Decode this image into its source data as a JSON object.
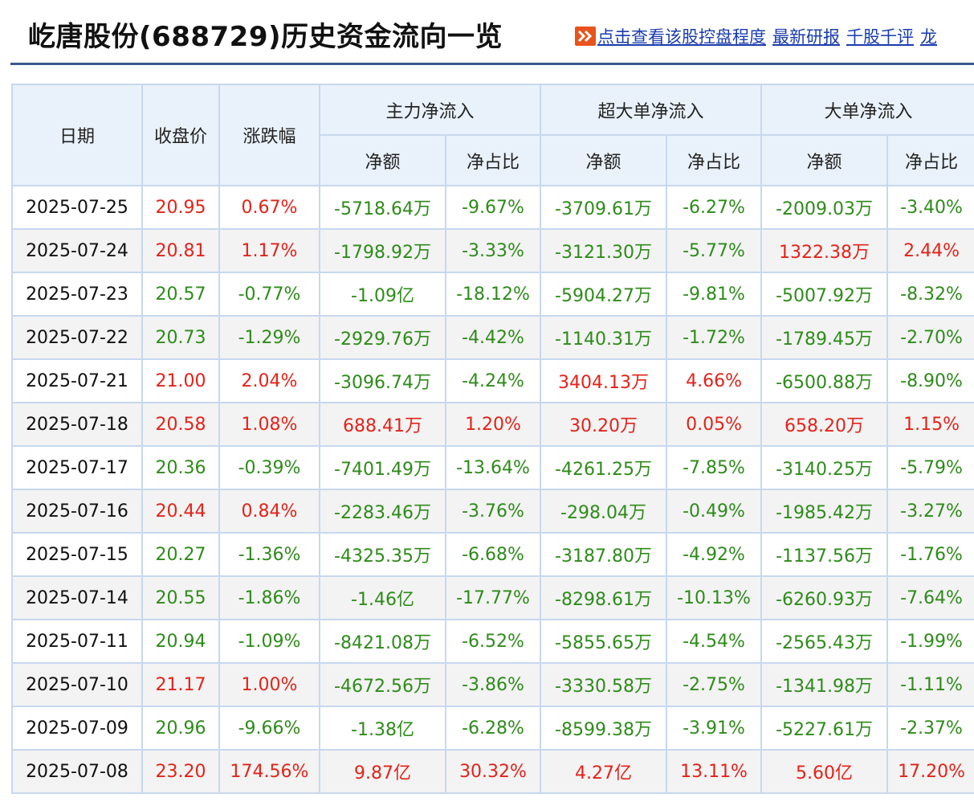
{
  "header": {
    "title": "屹唐股份(688729)历史资金流向一览",
    "links": [
      "点击查看该股控盘程度",
      "最新研报",
      "千股千评",
      "龙"
    ],
    "accent_color": "#3b5a8c",
    "link_icon": "double-chevron-right-icon"
  },
  "table": {
    "group_headers": {
      "date": "日期",
      "close": "收盘价",
      "change": "涨跌幅",
      "main": "主力净流入",
      "super_large": "超大单净流入",
      "large": "大单净流入"
    },
    "sub_headers": {
      "amount": "净额",
      "ratio": "净占比"
    },
    "colors": {
      "up": "#e2231a",
      "down": "#2e8b1a"
    },
    "rows": [
      {
        "date": "2025-07-25",
        "close": "20.95",
        "change": "0.67%",
        "main_amt": "-5718.64万",
        "main_pct": "-9.67%",
        "super_amt": "-3709.61万",
        "super_pct": "-6.27%",
        "large_amt": "-2009.03万",
        "large_pct": "-3.40%",
        "close_dir": "up",
        "change_dir": "up",
        "main_dir": "down",
        "super_dir": "down",
        "large_dir": "down"
      },
      {
        "date": "2025-07-24",
        "close": "20.81",
        "change": "1.17%",
        "main_amt": "-1798.92万",
        "main_pct": "-3.33%",
        "super_amt": "-3121.30万",
        "super_pct": "-5.77%",
        "large_amt": "1322.38万",
        "large_pct": "2.44%",
        "close_dir": "up",
        "change_dir": "up",
        "main_dir": "down",
        "super_dir": "down",
        "large_dir": "up"
      },
      {
        "date": "2025-07-23",
        "close": "20.57",
        "change": "-0.77%",
        "main_amt": "-1.09亿",
        "main_pct": "-18.12%",
        "super_amt": "-5904.27万",
        "super_pct": "-9.81%",
        "large_amt": "-5007.92万",
        "large_pct": "-8.32%",
        "close_dir": "down",
        "change_dir": "down",
        "main_dir": "down",
        "super_dir": "down",
        "large_dir": "down"
      },
      {
        "date": "2025-07-22",
        "close": "20.73",
        "change": "-1.29%",
        "main_amt": "-2929.76万",
        "main_pct": "-4.42%",
        "super_amt": "-1140.31万",
        "super_pct": "-1.72%",
        "large_amt": "-1789.45万",
        "large_pct": "-2.70%",
        "close_dir": "down",
        "change_dir": "down",
        "main_dir": "down",
        "super_dir": "down",
        "large_dir": "down"
      },
      {
        "date": "2025-07-21",
        "close": "21.00",
        "change": "2.04%",
        "main_amt": "-3096.74万",
        "main_pct": "-4.24%",
        "super_amt": "3404.13万",
        "super_pct": "4.66%",
        "large_amt": "-6500.88万",
        "large_pct": "-8.90%",
        "close_dir": "up",
        "change_dir": "up",
        "main_dir": "down",
        "super_dir": "up",
        "large_dir": "down"
      },
      {
        "date": "2025-07-18",
        "close": "20.58",
        "change": "1.08%",
        "main_amt": "688.41万",
        "main_pct": "1.20%",
        "super_amt": "30.20万",
        "super_pct": "0.05%",
        "large_amt": "658.20万",
        "large_pct": "1.15%",
        "close_dir": "up",
        "change_dir": "up",
        "main_dir": "up",
        "super_dir": "up",
        "large_dir": "up"
      },
      {
        "date": "2025-07-17",
        "close": "20.36",
        "change": "-0.39%",
        "main_amt": "-7401.49万",
        "main_pct": "-13.64%",
        "super_amt": "-4261.25万",
        "super_pct": "-7.85%",
        "large_amt": "-3140.25万",
        "large_pct": "-5.79%",
        "close_dir": "down",
        "change_dir": "down",
        "main_dir": "down",
        "super_dir": "down",
        "large_dir": "down"
      },
      {
        "date": "2025-07-16",
        "close": "20.44",
        "change": "0.84%",
        "main_amt": "-2283.46万",
        "main_pct": "-3.76%",
        "super_amt": "-298.04万",
        "super_pct": "-0.49%",
        "large_amt": "-1985.42万",
        "large_pct": "-3.27%",
        "close_dir": "up",
        "change_dir": "up",
        "main_dir": "down",
        "super_dir": "down",
        "large_dir": "down"
      },
      {
        "date": "2025-07-15",
        "close": "20.27",
        "change": "-1.36%",
        "main_amt": "-4325.35万",
        "main_pct": "-6.68%",
        "super_amt": "-3187.80万",
        "super_pct": "-4.92%",
        "large_amt": "-1137.56万",
        "large_pct": "-1.76%",
        "close_dir": "down",
        "change_dir": "down",
        "main_dir": "down",
        "super_dir": "down",
        "large_dir": "down"
      },
      {
        "date": "2025-07-14",
        "close": "20.55",
        "change": "-1.86%",
        "main_amt": "-1.46亿",
        "main_pct": "-17.77%",
        "super_amt": "-8298.61万",
        "super_pct": "-10.13%",
        "large_amt": "-6260.93万",
        "large_pct": "-7.64%",
        "close_dir": "down",
        "change_dir": "down",
        "main_dir": "down",
        "super_dir": "down",
        "large_dir": "down"
      },
      {
        "date": "2025-07-11",
        "close": "20.94",
        "change": "-1.09%",
        "main_amt": "-8421.08万",
        "main_pct": "-6.52%",
        "super_amt": "-5855.65万",
        "super_pct": "-4.54%",
        "large_amt": "-2565.43万",
        "large_pct": "-1.99%",
        "close_dir": "down",
        "change_dir": "down",
        "main_dir": "down",
        "super_dir": "down",
        "large_dir": "down"
      },
      {
        "date": "2025-07-10",
        "close": "21.17",
        "change": "1.00%",
        "main_amt": "-4672.56万",
        "main_pct": "-3.86%",
        "super_amt": "-3330.58万",
        "super_pct": "-2.75%",
        "large_amt": "-1341.98万",
        "large_pct": "-1.11%",
        "close_dir": "up",
        "change_dir": "up",
        "main_dir": "down",
        "super_dir": "down",
        "large_dir": "down"
      },
      {
        "date": "2025-07-09",
        "close": "20.96",
        "change": "-9.66%",
        "main_amt": "-1.38亿",
        "main_pct": "-6.28%",
        "super_amt": "-8599.38万",
        "super_pct": "-3.91%",
        "large_amt": "-5227.61万",
        "large_pct": "-2.37%",
        "close_dir": "down",
        "change_dir": "down",
        "main_dir": "down",
        "super_dir": "down",
        "large_dir": "down"
      },
      {
        "date": "2025-07-08",
        "close": "23.20",
        "change": "174.56%",
        "main_amt": "9.87亿",
        "main_pct": "30.32%",
        "super_amt": "4.27亿",
        "super_pct": "13.11%",
        "large_amt": "5.60亿",
        "large_pct": "17.20%",
        "close_dir": "up",
        "change_dir": "up",
        "main_dir": "up",
        "super_dir": "up",
        "large_dir": "up"
      }
    ]
  }
}
